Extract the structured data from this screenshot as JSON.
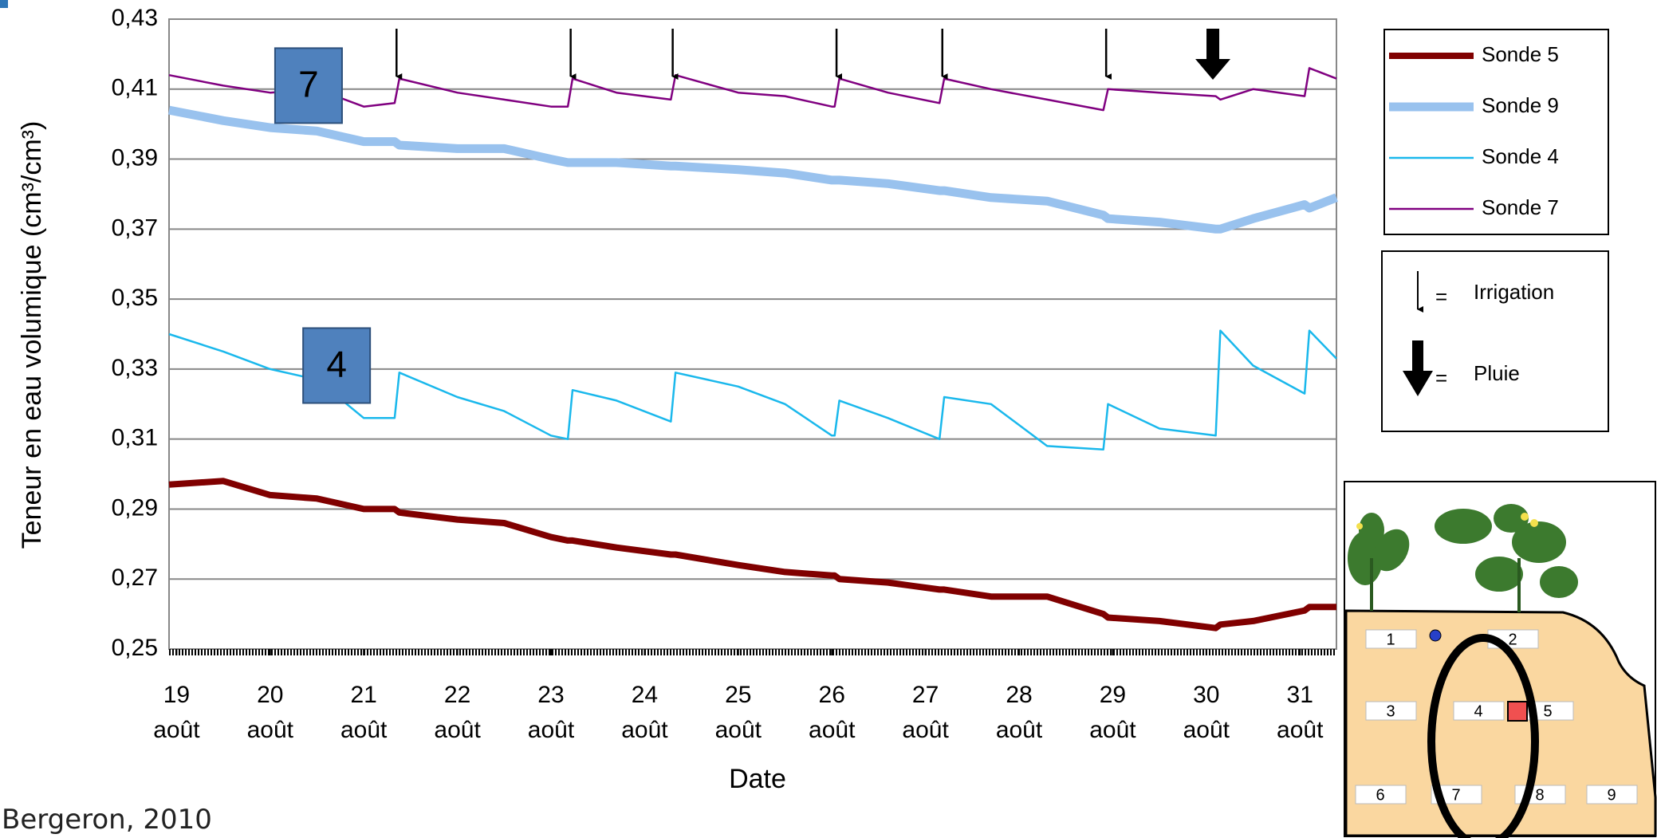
{
  "chart_data": {
    "type": "line",
    "x_label": "Date",
    "y_label": "Teneur en eau volumique (cm³/cm³)",
    "x": [
      18.92,
      19.5,
      20,
      20.5,
      21,
      21.33,
      21.38,
      22,
      22.5,
      23,
      23.18,
      23.23,
      23.7,
      24.28,
      24.33,
      25,
      25.5,
      26,
      26.03,
      26.08,
      26.6,
      27.15,
      27.2,
      27.7,
      28.3,
      28.9,
      28.95,
      29.5,
      30.1,
      30.15,
      30.5,
      31.05,
      31.1,
      31.39
    ],
    "series": [
      {
        "name": "Sonde 5",
        "color": "#800000",
        "values": [
          0.297,
          0.298,
          0.294,
          0.293,
          0.29,
          0.29,
          0.289,
          0.287,
          0.286,
          0.282,
          0.281,
          0.281,
          0.279,
          0.277,
          0.277,
          0.274,
          0.272,
          0.271,
          0.271,
          0.27,
          0.269,
          0.267,
          0.267,
          0.265,
          0.265,
          0.26,
          0.259,
          0.258,
          0.256,
          0.257,
          0.258,
          0.261,
          0.262,
          0.262
        ]
      },
      {
        "name": "Sonde 9",
        "color": "#99c2ee",
        "values": [
          0.404,
          0.401,
          0.399,
          0.398,
          0.395,
          0.395,
          0.394,
          0.393,
          0.393,
          0.39,
          0.389,
          0.389,
          0.389,
          0.388,
          0.388,
          0.387,
          0.386,
          0.384,
          0.384,
          0.384,
          0.383,
          0.381,
          0.381,
          0.379,
          0.378,
          0.374,
          0.373,
          0.372,
          0.37,
          0.37,
          0.373,
          0.377,
          0.376,
          0.379
        ]
      },
      {
        "name": "Sonde 4",
        "color": "#1ab8ec",
        "values": [
          0.34,
          0.335,
          0.33,
          0.327,
          0.316,
          0.316,
          0.329,
          0.322,
          0.318,
          0.311,
          0.31,
          0.324,
          0.321,
          0.315,
          0.329,
          0.325,
          0.32,
          0.311,
          0.311,
          0.321,
          0.316,
          0.31,
          0.322,
          0.32,
          0.308,
          0.307,
          0.32,
          0.313,
          0.311,
          0.341,
          0.331,
          0.323,
          0.341,
          0.333
        ]
      },
      {
        "name": "Sonde 7",
        "color": "#800080",
        "values": [
          0.414,
          0.411,
          0.409,
          0.41,
          0.405,
          0.406,
          0.413,
          0.409,
          0.407,
          0.405,
          0.405,
          0.413,
          0.409,
          0.407,
          0.414,
          0.409,
          0.408,
          0.405,
          0.405,
          0.413,
          0.409,
          0.406,
          0.413,
          0.41,
          0.407,
          0.404,
          0.41,
          0.409,
          0.408,
          0.407,
          0.41,
          0.408,
          0.416,
          0.413
        ]
      }
    ],
    "xlim": [
      18.92,
      31.39
    ],
    "xticks": [
      {
        "value": 19,
        "label": "19 août"
      },
      {
        "value": 20,
        "label": "20 août"
      },
      {
        "value": 21,
        "label": "21 août"
      },
      {
        "value": 22,
        "label": "22 août"
      },
      {
        "value": 23,
        "label": "23 août"
      },
      {
        "value": 24,
        "label": "24 août"
      },
      {
        "value": 25,
        "label": "25 août"
      },
      {
        "value": 26,
        "label": "26 août"
      },
      {
        "value": 27,
        "label": "27 août"
      },
      {
        "value": 28,
        "label": "28 août"
      },
      {
        "value": 29,
        "label": "29 août"
      },
      {
        "value": 30,
        "label": "30 août"
      },
      {
        "value": 31,
        "label": "31 août"
      }
    ],
    "ylim": [
      0.25,
      0.43
    ],
    "yticks": [
      {
        "value": 0.25,
        "label": "0,25"
      },
      {
        "value": 0.27,
        "label": "0,27"
      },
      {
        "value": 0.29,
        "label": "0,29"
      },
      {
        "value": 0.31,
        "label": "0,31"
      },
      {
        "value": 0.33,
        "label": "0,33"
      },
      {
        "value": 0.35,
        "label": "0,35"
      },
      {
        "value": 0.37,
        "label": "0,37"
      },
      {
        "value": 0.39,
        "label": "0,39"
      },
      {
        "value": 0.41,
        "label": "0,41"
      },
      {
        "value": 0.43,
        "label": "0,43"
      }
    ],
    "grid": true,
    "irrigation_x": [
      21.35,
      23.21,
      24.3,
      26.05,
      27.18,
      28.93
    ],
    "rain_x": [
      30.07
    ],
    "event_legend": [
      {
        "symbol": "=",
        "label": "Irrigation"
      },
      {
        "symbol": "=",
        "label": "Pluie"
      }
    ],
    "annotations": [
      {
        "text": "7",
        "x": 20.41,
        "y": 0.411
      },
      {
        "text": "4",
        "x": 20.71,
        "y": 0.331
      }
    ]
  },
  "diagram": {
    "positions": [
      "1",
      "2",
      "3",
      "4",
      "5",
      "6",
      "7",
      "8",
      "9"
    ]
  },
  "source": "Bergeron, 2010"
}
